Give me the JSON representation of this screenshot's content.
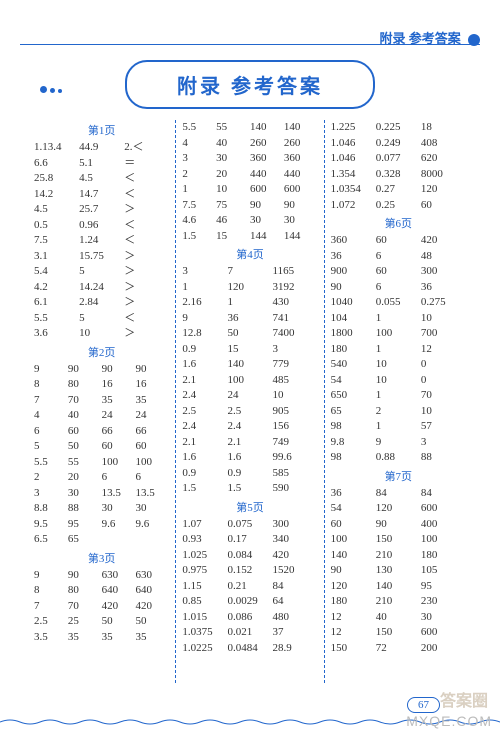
{
  "header": {
    "text": "附录 参考答案"
  },
  "title": "附录 参考答案",
  "pageNumber": "67",
  "watermark": "MXQE.COM",
  "watermarkCn": "答案圈",
  "columns": [
    {
      "blocks": [
        {
          "label": "第1页",
          "rows": [
            [
              "1.13.4",
              "44.9",
              "2.＜"
            ],
            [
              "6.6",
              "5.1",
              "＝"
            ],
            [
              "25.8",
              "4.5",
              "＜"
            ],
            [
              "14.2",
              "14.7",
              "＜"
            ],
            [
              "4.5",
              "25.7",
              "＞"
            ],
            [
              "0.5",
              "0.96",
              "＜"
            ],
            [
              "7.5",
              "1.24",
              "＜"
            ],
            [
              "3.1",
              "15.75",
              "＞"
            ],
            [
              "5.4",
              "5",
              "＞"
            ],
            [
              "4.2",
              "14.24",
              "＞"
            ],
            [
              "6.1",
              "2.84",
              "＞"
            ],
            [
              "5.5",
              "5",
              "＜"
            ],
            [
              "3.6",
              "10",
              "＞"
            ]
          ]
        },
        {
          "label": "第2页",
          "rows": [
            [
              "9",
              "90",
              "90",
              "90"
            ],
            [
              "8",
              "80",
              "16",
              "16"
            ],
            [
              "7",
              "70",
              "35",
              "35"
            ],
            [
              "4",
              "40",
              "24",
              "24"
            ],
            [
              "6",
              "60",
              "66",
              "66"
            ],
            [
              "5",
              "50",
              "60",
              "60"
            ],
            [
              "5.5",
              "55",
              "100",
              "100"
            ],
            [
              "2",
              "20",
              "6",
              "6"
            ],
            [
              "3",
              "30",
              "13.5",
              "13.5"
            ],
            [
              "8.8",
              "88",
              "30",
              "30"
            ],
            [
              "9.5",
              "95",
              "9.6",
              "9.6"
            ],
            [
              "6.5",
              "65",
              "",
              ""
            ]
          ]
        },
        {
          "label": "第3页",
          "rows": [
            [
              "9",
              "90",
              "630",
              "630"
            ],
            [
              "8",
              "80",
              "640",
              "640"
            ],
            [
              "7",
              "70",
              "420",
              "420"
            ],
            [
              "2.5",
              "25",
              "50",
              "50"
            ],
            [
              "3.5",
              "35",
              "35",
              "35"
            ]
          ]
        }
      ]
    },
    {
      "blocks": [
        {
          "label": null,
          "rows": [
            [
              "5.5",
              "55",
              "140",
              "140"
            ],
            [
              "4",
              "40",
              "260",
              "260"
            ],
            [
              "3",
              "30",
              "360",
              "360"
            ],
            [
              "2",
              "20",
              "440",
              "440"
            ],
            [
              "1",
              "10",
              "600",
              "600"
            ],
            [
              "7.5",
              "75",
              "90",
              "90"
            ],
            [
              "4.6",
              "46",
              "30",
              "30"
            ],
            [
              "1.5",
              "15",
              "144",
              "144"
            ]
          ]
        },
        {
          "label": "第4页",
          "rows": [
            [
              "3",
              "7",
              "1165"
            ],
            [
              "1",
              "120",
              "3192"
            ],
            [
              "2.16",
              "1",
              "430"
            ],
            [
              "9",
              "36",
              "741"
            ],
            [
              "12.8",
              "50",
              "7400"
            ],
            [
              "0.9",
              "15",
              "3"
            ],
            [
              "1.6",
              "140",
              "779"
            ],
            [
              "2.1",
              "100",
              "485"
            ],
            [
              "2.4",
              "24",
              "10"
            ],
            [
              "2.5",
              "2.5",
              "905"
            ],
            [
              "2.4",
              "2.4",
              "156"
            ],
            [
              "2.1",
              "2.1",
              "749"
            ],
            [
              "1.6",
              "1.6",
              "99.6"
            ],
            [
              "0.9",
              "0.9",
              "585"
            ],
            [
              "1.5",
              "1.5",
              "590"
            ]
          ]
        },
        {
          "label": "第5页",
          "rows": [
            [
              "1.07",
              "0.075",
              "300"
            ],
            [
              "0.93",
              "0.17",
              "340"
            ],
            [
              "1.025",
              "0.084",
              "420"
            ],
            [
              "0.975",
              "0.152",
              "1520"
            ],
            [
              "1.15",
              "0.21",
              "84"
            ],
            [
              "0.85",
              "0.0029",
              "64"
            ],
            [
              "1.015",
              "0.086",
              "480"
            ],
            [
              "1.0375",
              "0.021",
              "37"
            ],
            [
              "1.0225",
              "0.0484",
              "28.9"
            ]
          ]
        }
      ]
    },
    {
      "blocks": [
        {
          "label": null,
          "rows": [
            [
              "1.225",
              "0.225",
              "18"
            ],
            [
              "1.046",
              "0.249",
              "408"
            ],
            [
              "1.046",
              "0.077",
              "620"
            ],
            [
              "1.354",
              "0.328",
              "8000"
            ],
            [
              "1.0354",
              "0.27",
              "120"
            ],
            [
              "1.072",
              "0.25",
              "60"
            ]
          ]
        },
        {
          "label": "第6页",
          "rows": [
            [
              "360",
              "60",
              "420"
            ],
            [
              "36",
              "6",
              "48"
            ],
            [
              "900",
              "60",
              "300"
            ],
            [
              "90",
              "6",
              "36"
            ],
            [
              "1040",
              "0.055",
              "0.275"
            ],
            [
              "104",
              "1",
              "10"
            ],
            [
              "1800",
              "100",
              "700"
            ],
            [
              "180",
              "1",
              "12"
            ],
            [
              "540",
              "10",
              "0"
            ],
            [
              "54",
              "10",
              "0"
            ],
            [
              "650",
              "1",
              "70"
            ],
            [
              "65",
              "2",
              "10"
            ],
            [
              "98",
              "1",
              "57"
            ],
            [
              "9.8",
              "9",
              "3"
            ],
            [
              "98",
              "0.88",
              "88"
            ]
          ]
        },
        {
          "label": "第7页",
          "rows": [
            [
              "36",
              "84",
              "84"
            ],
            [
              "54",
              "120",
              "600"
            ],
            [
              "60",
              "90",
              "400"
            ],
            [
              "100",
              "150",
              "100"
            ],
            [
              "140",
              "210",
              "180"
            ],
            [
              "90",
              "130",
              "105"
            ],
            [
              "120",
              "140",
              "95"
            ],
            [
              "180",
              "210",
              "230"
            ],
            [
              "12",
              "40",
              "30"
            ],
            [
              "12",
              "150",
              "600"
            ],
            [
              "150",
              "72",
              "200"
            ]
          ]
        }
      ]
    }
  ]
}
